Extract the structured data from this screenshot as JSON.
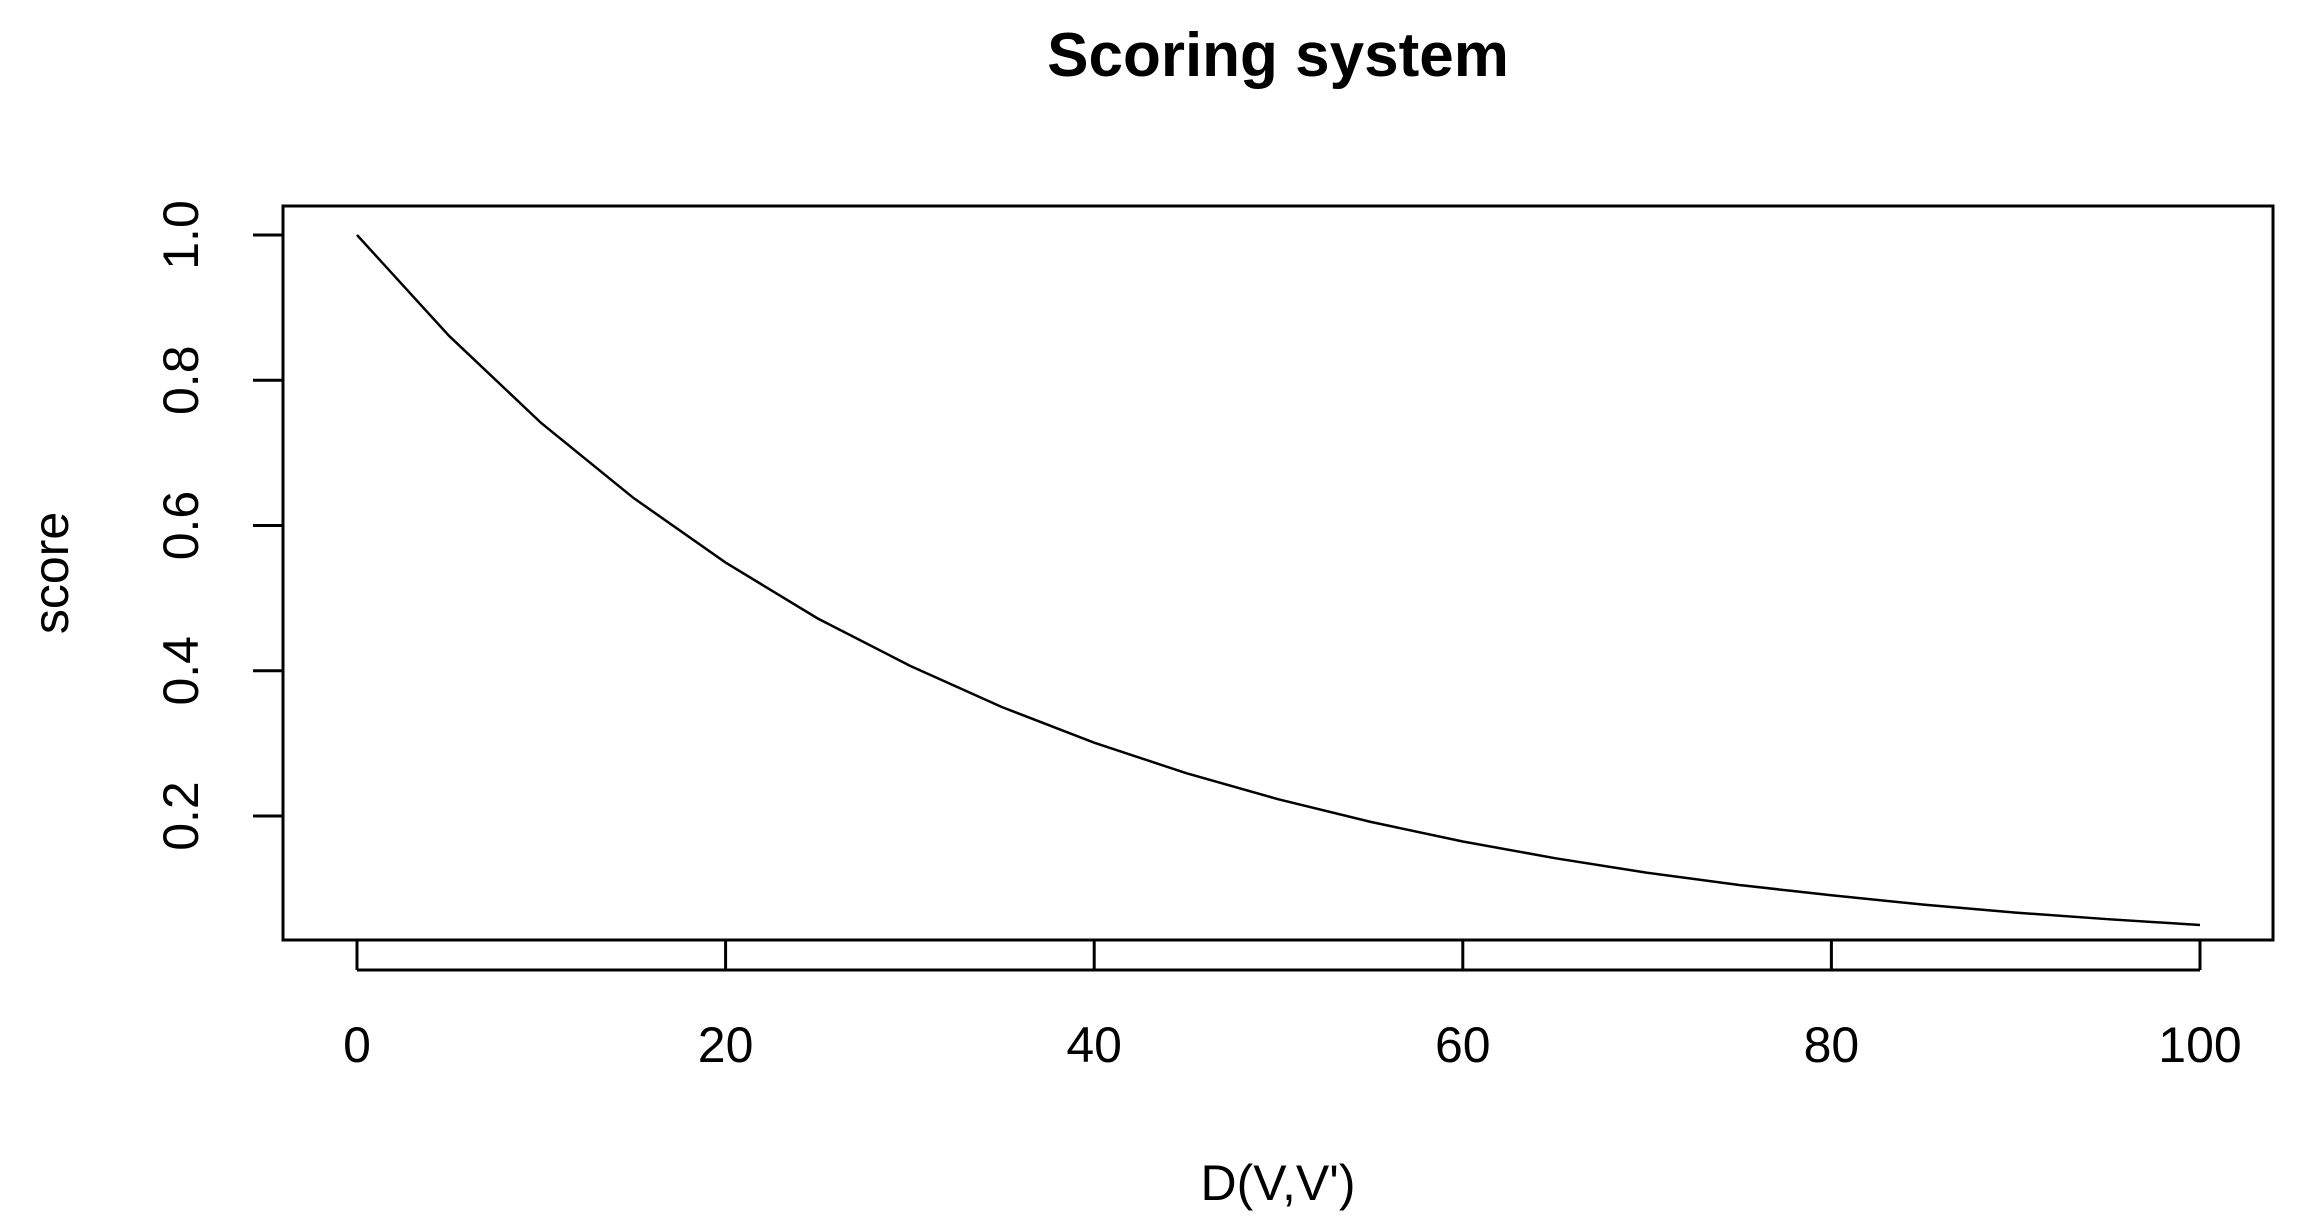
{
  "chart_data": {
    "type": "line",
    "title": "Scoring system",
    "xlabel": "D(V,V')",
    "ylabel": "score",
    "xlim": [
      0,
      100
    ],
    "ylim": [
      0.05,
      1.0
    ],
    "x_ticks": [
      0,
      20,
      40,
      60,
      80,
      100
    ],
    "x_tick_labels": [
      "0",
      "20",
      "40",
      "60",
      "80",
      "100"
    ],
    "y_ticks": [
      0.2,
      0.4,
      0.6,
      0.8,
      1.0
    ],
    "y_tick_labels": [
      "0.2",
      "0.4",
      "0.6",
      "0.8",
      "1.0"
    ],
    "grid": false,
    "series": [
      {
        "x": [
          0,
          5,
          10,
          15,
          20,
          25,
          30,
          35,
          40,
          45,
          50,
          55,
          60,
          65,
          70,
          75,
          80,
          85,
          90,
          95,
          100
        ],
        "values": [
          1.0,
          0.861,
          0.741,
          0.638,
          0.549,
          0.472,
          0.407,
          0.35,
          0.301,
          0.259,
          0.223,
          0.192,
          0.165,
          0.142,
          0.122,
          0.105,
          0.091,
          0.078,
          0.067,
          0.058,
          0.05
        ]
      }
    ],
    "line_color": "#000000"
  }
}
